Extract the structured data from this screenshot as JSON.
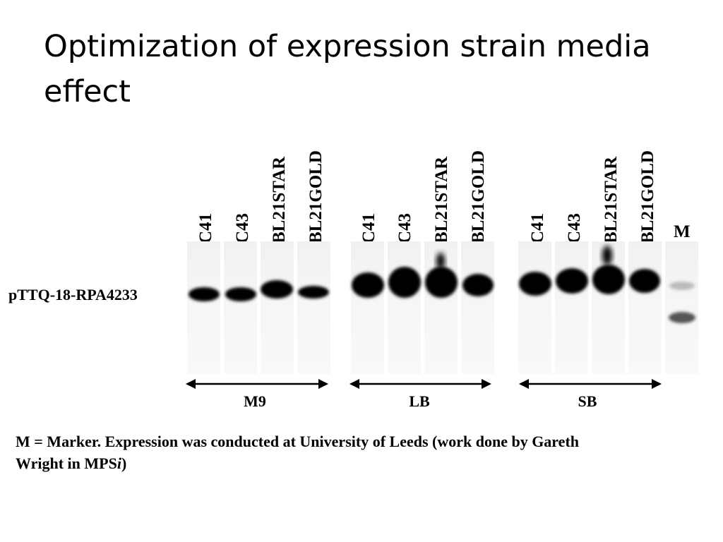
{
  "title": "Optimization of expression strain media effect",
  "construct_label": "pTTQ-18-RPA4233",
  "marker_label": "M",
  "groups": [
    {
      "medium": "M9",
      "lanes": [
        "C41",
        "C43",
        "BL21STAR",
        "BL21GOLD"
      ]
    },
    {
      "medium": "LB",
      "lanes": [
        "C41",
        "C43",
        "BL21STAR",
        "BL21GOLD"
      ]
    },
    {
      "medium": "SB",
      "lanes": [
        "C41",
        "C43",
        "BL21STAR",
        "BL21GOLD"
      ]
    }
  ],
  "caption": {
    "line1": "M = Marker. Expression was conducted at University of Leeds (work done by Gareth",
    "line2_prefix": "Wright in MPS",
    "line2_italic": "i",
    "line2_suffix": ")"
  }
}
